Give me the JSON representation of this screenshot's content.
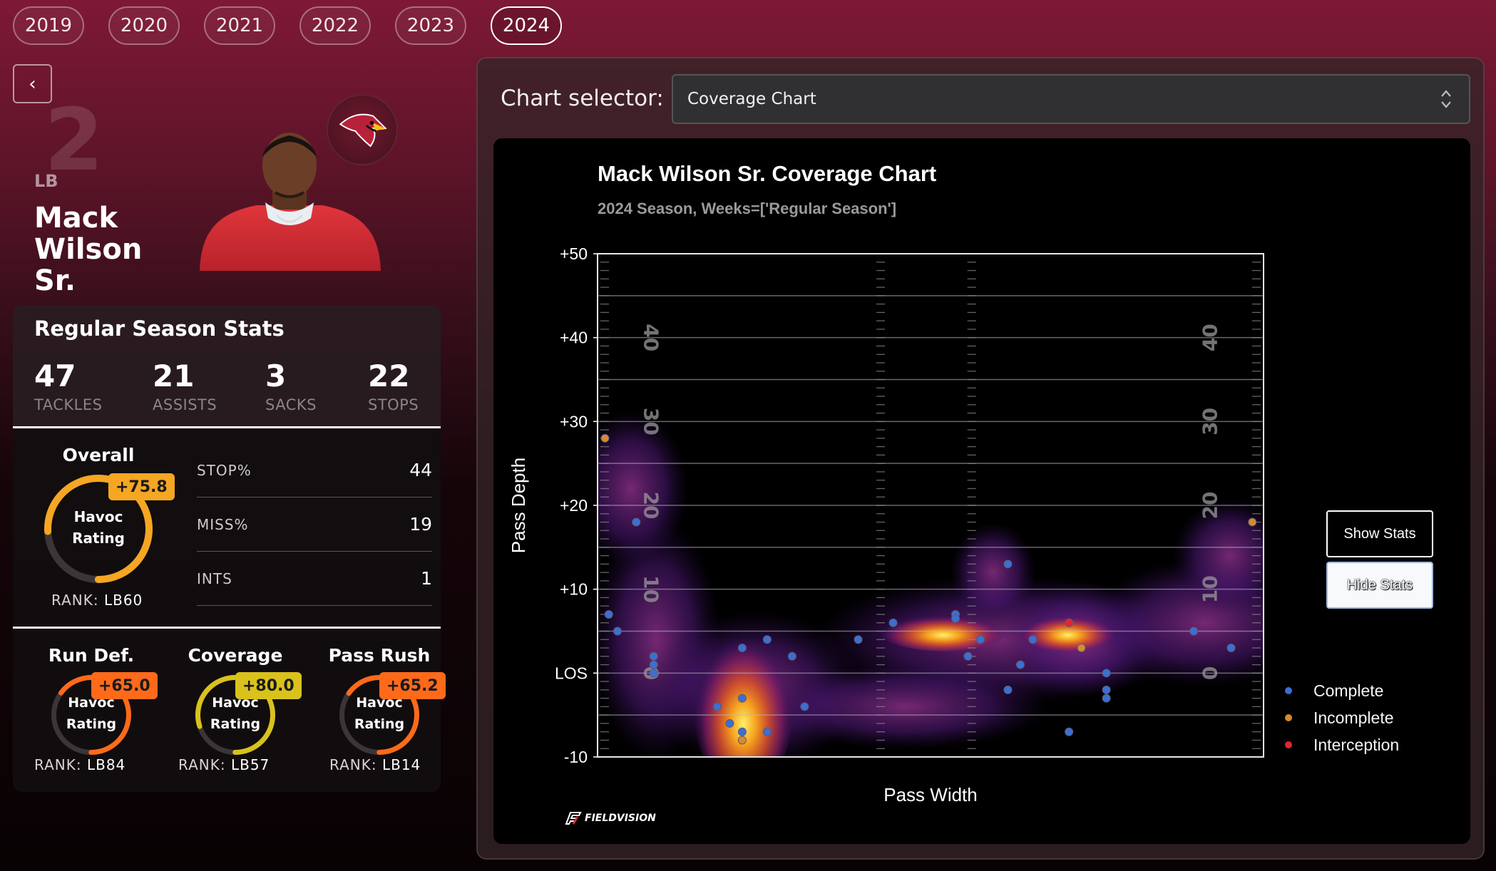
{
  "years": [
    "2019",
    "2020",
    "2021",
    "2022",
    "2023",
    "2024"
  ],
  "active_year": "2024",
  "back_label": "‹",
  "player": {
    "number": "2",
    "position": "LB",
    "name": "Mack Wilson Sr."
  },
  "season_stats": {
    "title": "Regular Season Stats",
    "items": [
      {
        "value": "47",
        "label": "TACKLES"
      },
      {
        "value": "21",
        "label": "ASSISTS"
      },
      {
        "value": "3",
        "label": "SACKS"
      },
      {
        "value": "22",
        "label": "STOPS"
      }
    ]
  },
  "overall": {
    "title": "Overall",
    "badge": "+75.8",
    "gauge_line1": "Havoc",
    "gauge_line2": "Rating",
    "rank_label": "RANK:",
    "rank_value": "LB60",
    "fill": 0.758,
    "color": "#f5a623",
    "table": [
      {
        "label": "STOP%",
        "value": "44"
      },
      {
        "label": "MISS%",
        "value": "19"
      },
      {
        "label": "INTS",
        "value": "1"
      }
    ]
  },
  "sub_ratings": [
    {
      "title": "Run Def.",
      "badge": "+65.0",
      "rank_label": "RANK:",
      "rank_value": "LB84",
      "fill": 0.65,
      "color": "#ff6a1a",
      "badge_color": "#ff6a1a",
      "line1": "Havoc",
      "line2": "Rating"
    },
    {
      "title": "Coverage",
      "badge": "+80.0",
      "rank_label": "RANK:",
      "rank_value": "LB57",
      "fill": 0.8,
      "color": "#d9c21c",
      "badge_color": "#d9c21c",
      "line1": "Havoc",
      "line2": "Rating"
    },
    {
      "title": "Pass Rush",
      "badge": "+65.2",
      "rank_label": "RANK:",
      "rank_value": "LB14",
      "fill": 0.652,
      "color": "#ff6a1a",
      "badge_color": "#ff6a1a",
      "line1": "Havoc",
      "line2": "Rating"
    }
  ],
  "chart_selector": {
    "label": "Chart selector:",
    "value": "Coverage Chart"
  },
  "buttons": {
    "show_stats": "Show Stats",
    "hide_stats": "Hide Stats"
  },
  "brand": "FIELDVISION",
  "chart_data": {
    "type": "scatter",
    "title": "Mack Wilson Sr. Coverage Chart",
    "subtitle": "2024 Season, Weeks=['Regular Season']",
    "xlabel": "Pass Width",
    "ylabel": "Pass Depth",
    "xlim": [
      -26.7,
      26.7
    ],
    "ylim": [
      -10,
      50
    ],
    "ytick_labels": [
      "-10",
      "LOS",
      "+10",
      "+20",
      "+30",
      "+40",
      "+50"
    ],
    "ytick_values": [
      -10,
      0,
      10,
      20,
      30,
      40,
      50
    ],
    "field_numbers": [
      "40",
      "30",
      "20",
      "10",
      "0"
    ],
    "legend": [
      {
        "name": "Complete",
        "color": "#3b6fd1"
      },
      {
        "name": "Incomplete",
        "color": "#d98a2e"
      },
      {
        "name": "Interception",
        "color": "#e0262e"
      }
    ],
    "legend_position": "right",
    "density_overlay": true,
    "series": [
      {
        "name": "Complete",
        "points": [
          [
            -23.6,
            18
          ],
          [
            -25.8,
            7
          ],
          [
            -25.1,
            5
          ],
          [
            -22.2,
            2
          ],
          [
            -22.2,
            1
          ],
          [
            -22.2,
            0
          ],
          [
            -15.1,
            3
          ],
          [
            -13.1,
            4
          ],
          [
            -11.1,
            2
          ],
          [
            -10.1,
            -4
          ],
          [
            -17.1,
            -4
          ],
          [
            -16.1,
            -6
          ],
          [
            -15.1,
            -3
          ],
          [
            -15.1,
            -7
          ],
          [
            -13.1,
            -7
          ],
          [
            -5.8,
            4
          ],
          [
            -3.0,
            6
          ],
          [
            2.0,
            7
          ],
          [
            2.0,
            6.5
          ],
          [
            3.0,
            2
          ],
          [
            4.0,
            4
          ],
          [
            6.2,
            13
          ],
          [
            7.2,
            1
          ],
          [
            6.2,
            -2
          ],
          [
            8.2,
            4
          ],
          [
            11.1,
            -7
          ],
          [
            14.1,
            0
          ],
          [
            14.1,
            -2
          ],
          [
            14.1,
            -3
          ],
          [
            21.1,
            5
          ],
          [
            24.1,
            3
          ]
        ]
      },
      {
        "name": "Incomplete",
        "points": [
          [
            -26.1,
            28
          ],
          [
            25.8,
            18
          ],
          [
            12.1,
            3
          ],
          [
            -15.1,
            -8
          ]
        ]
      },
      {
        "name": "Interception",
        "points": [
          [
            11.1,
            6
          ]
        ]
      }
    ]
  }
}
